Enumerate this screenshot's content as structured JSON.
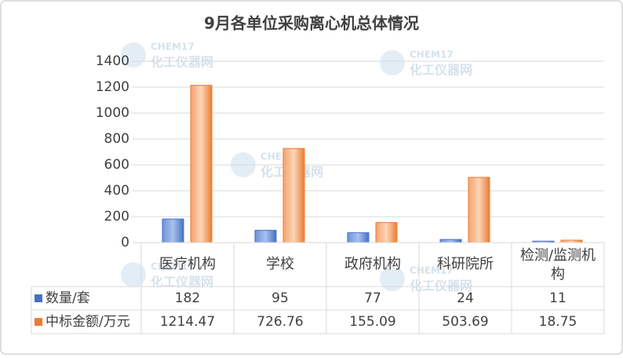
{
  "chart_data": {
    "type": "bar",
    "title": "9月各单位采购离心机总体情况",
    "categories": [
      "医疗机构",
      "学校",
      "政府机构",
      "科研院所",
      "检测/监测机构"
    ],
    "series": [
      {
        "name": "数量/套",
        "color": "#4472c4",
        "values": [
          182,
          95,
          77,
          24,
          11
        ]
      },
      {
        "name": "中标金额/万元",
        "color": "#ed7d31",
        "values": [
          1214.47,
          726.76,
          155.09,
          503.69,
          18.75
        ]
      }
    ],
    "ylim": [
      0,
      1400
    ],
    "yticks": [
      0,
      200,
      400,
      600,
      800,
      1000,
      1200,
      1400
    ],
    "grid": true
  },
  "watermark": {
    "brand": "CHEM17",
    "name": "化工仪器网"
  }
}
